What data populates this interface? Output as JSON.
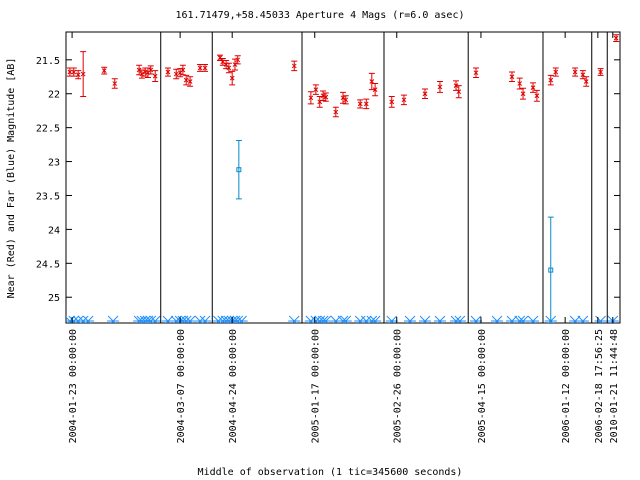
{
  "chart_data": {
    "type": "errorbar",
    "title": "161.71479,+58.45033   Aperture 4 Mags (r=6.0 asec)",
    "xlabel": "Middle of observation (1 tic=345600 seconds)",
    "ylabel": "Near (Red) and Far (Blue) Magnitude [AB]",
    "xlim": [
      0,
      100
    ],
    "ylim": [
      21.09,
      25.38
    ],
    "y_reversed": true,
    "yticks": [
      21.5,
      22,
      22.5,
      23,
      23.5,
      24,
      24.5,
      25
    ],
    "xticks": [
      {
        "value": 1.1,
        "label": "2004-01-23 00:00:00"
      },
      {
        "value": 20.6,
        "label": "2004-03-07 00:00:00"
      },
      {
        "value": 30.0,
        "label": "2004-04-24 00:00:00"
      },
      {
        "value": 44.9,
        "label": "2005-01-17 00:00:00"
      },
      {
        "value": 59.7,
        "label": "2005-02-26 00:00:00"
      },
      {
        "value": 74.9,
        "label": "2005-04-15 00:00:00"
      },
      {
        "value": 90.1,
        "label": "2006-01-12 00:00:00"
      },
      {
        "value": 96.0,
        "label": "2006-02-18 17:56:25"
      },
      {
        "value": 98.7,
        "label": "2010-01-21 11:44:48"
      }
    ],
    "separators": [
      17.1,
      26.4,
      42.6,
      57.4,
      72.6,
      86.1,
      94.9,
      97.7
    ],
    "series": [
      {
        "color": "#e00000",
        "marker": "cross",
        "x": [
          0.7,
          1.4,
          2.2,
          3.1,
          6.9,
          8.8,
          13.2,
          13.7,
          14.3,
          14.8,
          15.3,
          16.1,
          18.4,
          19.9,
          20.6,
          21.1,
          21.7,
          22.4,
          24.2,
          25.1,
          27.8,
          28.3,
          28.9,
          29.4,
          30.0,
          30.5,
          31.0,
          41.2,
          44.2,
          45.1,
          45.8,
          46.4,
          46.9,
          48.7,
          50.0,
          50.5,
          53.1,
          54.2,
          55.2,
          55.8,
          58.8,
          61.0,
          64.8,
          67.5,
          70.4,
          70.9,
          74.0,
          80.5,
          81.9,
          82.5,
          84.3,
          85.0,
          87.5,
          88.4,
          91.9,
          93.3,
          93.9,
          96.5,
          99.3
        ],
        "values": [
          21.68,
          21.68,
          21.72,
          21.71,
          21.66,
          21.85,
          21.65,
          21.71,
          21.68,
          21.69,
          21.65,
          21.74,
          21.68,
          21.71,
          21.69,
          21.65,
          21.8,
          21.82,
          21.62,
          21.62,
          21.47,
          21.53,
          21.57,
          21.62,
          21.77,
          21.57,
          21.5,
          21.59,
          22.06,
          21.94,
          22.12,
          22.03,
          22.05,
          22.27,
          22.06,
          22.09,
          22.15,
          22.15,
          21.82,
          21.94,
          22.12,
          22.09,
          22.0,
          21.9,
          21.88,
          21.97,
          21.69,
          21.75,
          21.85,
          22.0,
          21.91,
          22.03,
          21.8,
          21.68,
          21.68,
          21.72,
          21.82,
          21.68,
          21.18
        ],
        "errors": [
          0.06,
          0.06,
          0.06,
          0.33,
          0.05,
          0.07,
          0.07,
          0.06,
          0.06,
          0.07,
          0.06,
          0.08,
          0.06,
          0.07,
          0.06,
          0.07,
          0.07,
          0.07,
          0.05,
          0.05,
          0.04,
          0.05,
          0.06,
          0.07,
          0.1,
          0.08,
          0.06,
          0.07,
          0.09,
          0.07,
          0.08,
          0.07,
          0.06,
          0.07,
          0.08,
          0.06,
          0.06,
          0.07,
          0.12,
          0.09,
          0.08,
          0.07,
          0.07,
          0.08,
          0.07,
          0.09,
          0.07,
          0.07,
          0.08,
          0.08,
          0.07,
          0.08,
          0.07,
          0.06,
          0.06,
          0.06,
          0.07,
          0.05,
          0.05
        ]
      },
      {
        "color": "#0a8ac8",
        "marker": "square",
        "x": [
          31.2,
          87.5
        ],
        "values": [
          23.12,
          24.6
        ],
        "errors": [
          0.43,
          0.78
        ]
      }
    ],
    "lower_markers": {
      "color": "#1e90ff",
      "x": [
        0.7,
        1.4,
        2.2,
        3.1,
        4.0,
        8.5,
        13.2,
        13.7,
        14.3,
        14.8,
        15.3,
        16.1,
        18.4,
        19.9,
        20.6,
        21.1,
        21.7,
        22.4,
        24.2,
        25.1,
        27.5,
        28.3,
        28.9,
        29.4,
        30.0,
        30.5,
        31.0,
        31.7,
        41.2,
        44.2,
        45.1,
        45.8,
        46.4,
        46.9,
        48.7,
        50.0,
        50.5,
        53.1,
        54.2,
        55.2,
        55.8,
        58.8,
        62.1,
        64.8,
        67.5,
        70.4,
        71.1,
        74.0,
        77.8,
        80.5,
        81.9,
        82.5,
        84.3,
        87.5,
        91.9,
        93.3,
        96.5,
        98.7
      ]
    }
  }
}
